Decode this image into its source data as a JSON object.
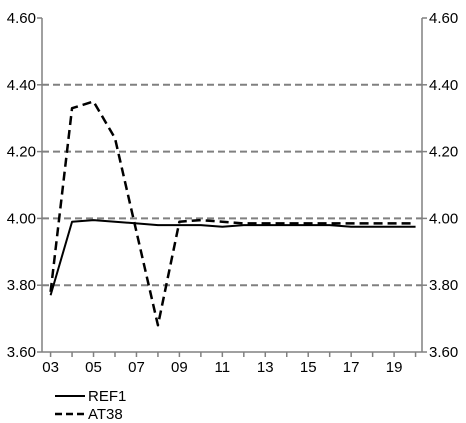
{
  "chart_data": {
    "type": "line",
    "title": "",
    "xlabel": "",
    "ylabel": "",
    "x": [
      3,
      4,
      5,
      6,
      7,
      8,
      9,
      10,
      11,
      12,
      13,
      14,
      15,
      16,
      17,
      18,
      19,
      20
    ],
    "x_tick_labels": [
      "03",
      "05",
      "07",
      "09",
      "11",
      "13",
      "15",
      "17",
      "19"
    ],
    "x_tick_values": [
      3,
      5,
      7,
      9,
      11,
      13,
      15,
      17,
      19
    ],
    "xlim": [
      2.6,
      20.3
    ],
    "ylim": [
      3.6,
      4.6
    ],
    "y_ticks": [
      3.6,
      3.8,
      4.0,
      4.2,
      4.4,
      4.6
    ],
    "y_tick_labels": [
      "3.60",
      "3.80",
      "4.00",
      "4.20",
      "4.40",
      "4.60"
    ],
    "grid": "horizontal dashed",
    "secondary_y_axis": true,
    "legend_position": "bottom-left",
    "series": [
      {
        "name": "REF1",
        "style": "solid",
        "color": "#000000",
        "values": [
          3.77,
          3.99,
          3.995,
          3.99,
          3.985,
          3.98,
          3.98,
          3.98,
          3.975,
          3.98,
          3.98,
          3.98,
          3.98,
          3.98,
          3.975,
          3.975,
          3.975,
          3.975
        ]
      },
      {
        "name": "AT38",
        "style": "dashed",
        "color": "#000000",
        "values": [
          3.78,
          4.33,
          4.35,
          4.24,
          3.96,
          3.68,
          3.99,
          3.995,
          3.99,
          3.985,
          3.985,
          3.985,
          3.985,
          3.985,
          3.985,
          3.985,
          3.985,
          3.985
        ]
      }
    ]
  }
}
